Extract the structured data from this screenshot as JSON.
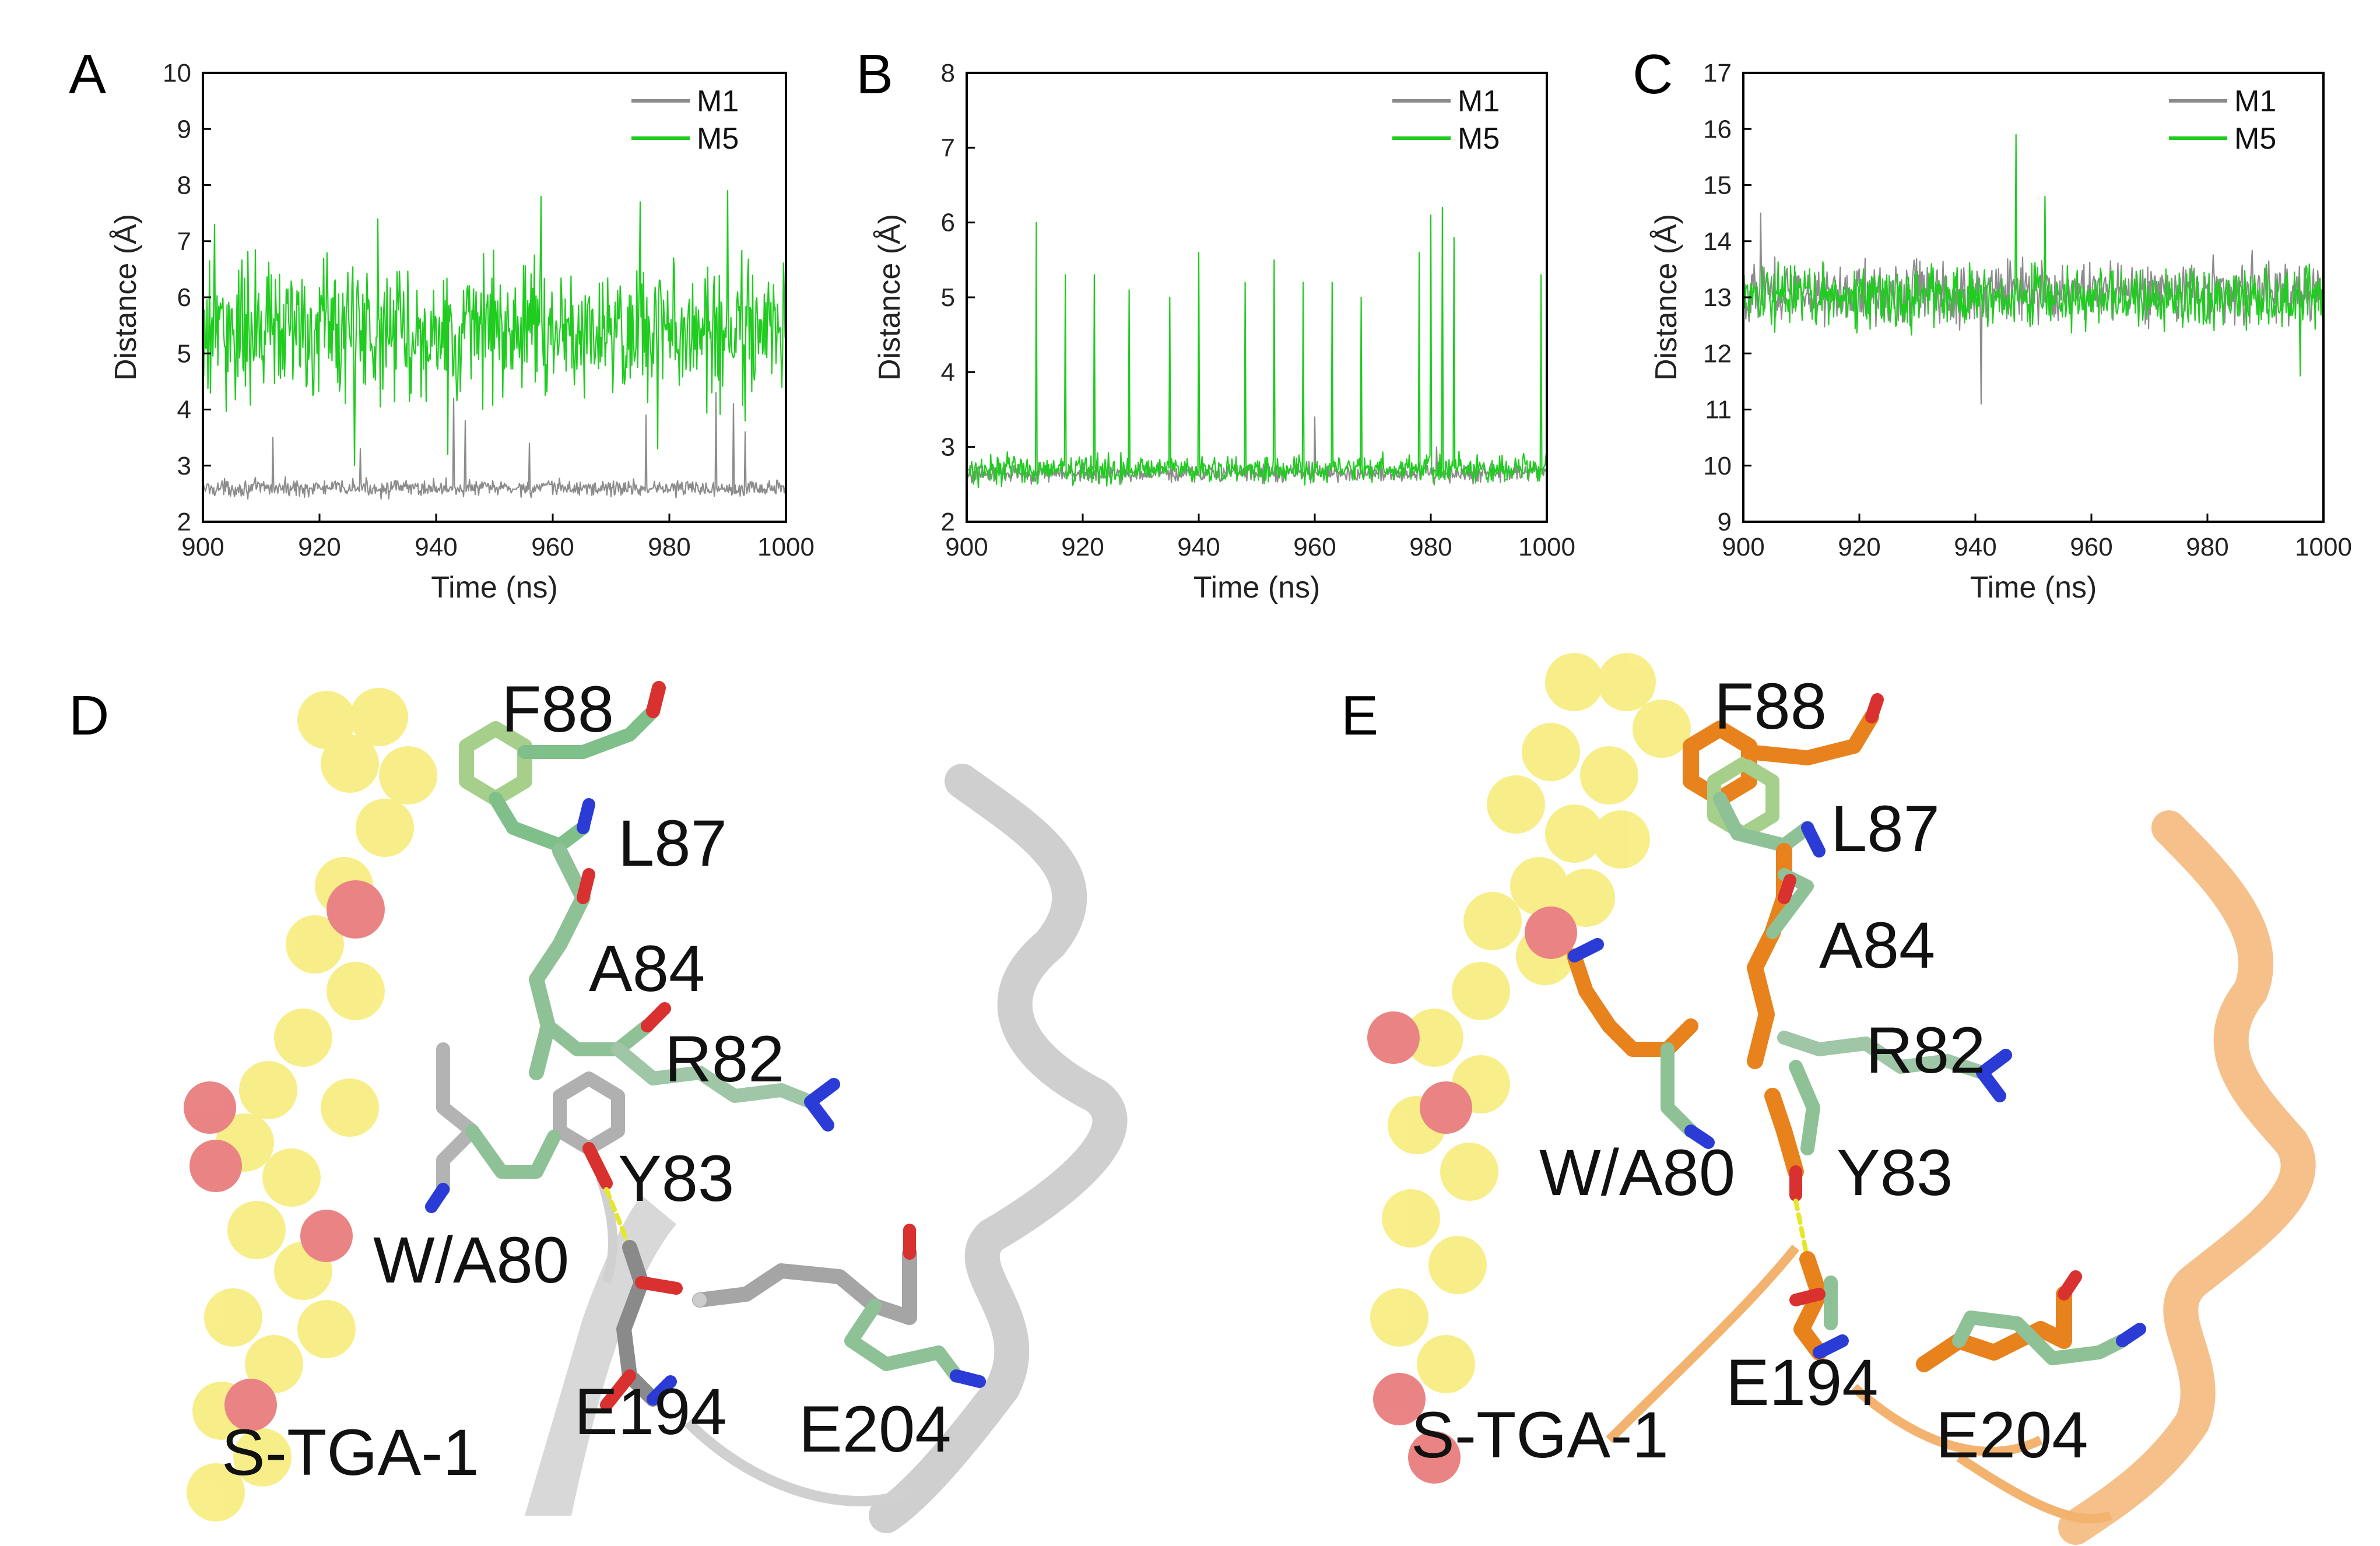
{
  "figure": {
    "panel_letters": [
      "A",
      "B",
      "C",
      "D",
      "E"
    ],
    "colors": {
      "M1": "#8c8c8c",
      "M5": "#1fcc1f",
      "frame": "#000000"
    }
  },
  "chart_data": [
    {
      "type": "line",
      "panel": "A",
      "title": "",
      "xlabel": "Time (ns)",
      "ylabel": "Distance (Å)",
      "xlim": [
        900,
        1000
      ],
      "ylim": [
        2,
        10
      ],
      "xticks": [
        900,
        920,
        940,
        960,
        980,
        1000
      ],
      "yticks": [
        2,
        3,
        4,
        5,
        6,
        7,
        8,
        9,
        10
      ],
      "legend": "top-right",
      "series": [
        {
          "name": "M1",
          "color": "#8c8c8c",
          "mean": 2.6,
          "noise": 0.12,
          "spikes": [
            [
              912,
              3.5
            ],
            [
              927,
              3.3
            ],
            [
              943,
              4.2
            ],
            [
              945,
              3.8
            ],
            [
              956,
              3.4
            ],
            [
              976,
              3.9
            ],
            [
              988,
              4.3
            ],
            [
              991,
              4.1
            ],
            [
              993,
              3.6
            ]
          ]
        },
        {
          "name": "M5",
          "color": "#1fcc1f",
          "mean": 5.4,
          "noise": 1.0,
          "spikes": [
            [
              902,
              7.3
            ],
            [
              930,
              7.4
            ],
            [
              958,
              7.8
            ],
            [
              975,
              7.7
            ],
            [
              990,
              7.9
            ],
            [
              926,
              3.0
            ],
            [
              942,
              3.2
            ],
            [
              978,
              3.3
            ],
            [
              993,
              3.8
            ]
          ]
        }
      ]
    },
    {
      "type": "line",
      "panel": "B",
      "title": "",
      "xlabel": "Time (ns)",
      "ylabel": "Distance (Å)",
      "xlim": [
        900,
        1000
      ],
      "ylim": [
        2,
        8
      ],
      "xticks": [
        900,
        920,
        940,
        960,
        980,
        1000
      ],
      "yticks": [
        2,
        3,
        4,
        5,
        6,
        7,
        8
      ],
      "legend": "top-right",
      "series": [
        {
          "name": "M1",
          "color": "#8c8c8c",
          "mean": 2.65,
          "noise": 0.1,
          "spikes": [
            [
              960,
              3.4
            ],
            [
              981,
              3.0
            ]
          ]
        },
        {
          "name": "M5",
          "color": "#1fcc1f",
          "mean": 2.7,
          "noise": 0.15,
          "spikes": [
            [
              912,
              6.0
            ],
            [
              917,
              5.3
            ],
            [
              922,
              5.3
            ],
            [
              928,
              5.1
            ],
            [
              935,
              5.0
            ],
            [
              940,
              5.6
            ],
            [
              948,
              5.2
            ],
            [
              953,
              5.5
            ],
            [
              958,
              5.2
            ],
            [
              963,
              5.2
            ],
            [
              968,
              5.0
            ],
            [
              978,
              5.6
            ],
            [
              980,
              6.1
            ],
            [
              982,
              6.2
            ],
            [
              984,
              5.8
            ],
            [
              999,
              5.3
            ]
          ]
        }
      ]
    },
    {
      "type": "line",
      "panel": "C",
      "title": "",
      "xlabel": "Time (ns)",
      "ylabel": "Distance (Å)",
      "xlim": [
        900,
        1000
      ],
      "ylim": [
        9,
        17
      ],
      "xticks": [
        900,
        920,
        940,
        960,
        980,
        1000
      ],
      "yticks": [
        9,
        10,
        11,
        12,
        13,
        14,
        15,
        16,
        17
      ],
      "legend": "top-right",
      "series": [
        {
          "name": "M1",
          "color": "#8c8c8c",
          "mean": 13.1,
          "noise": 0.45,
          "spikes": [
            [
              941,
              11.1
            ],
            [
              903,
              14.5
            ]
          ]
        },
        {
          "name": "M5",
          "color": "#1fcc1f",
          "mean": 13.0,
          "noise": 0.45,
          "spikes": [
            [
              947,
              15.9
            ],
            [
              952,
              14.8
            ],
            [
              996,
              11.6
            ]
          ]
        }
      ]
    }
  ],
  "structures": {
    "D": {
      "residues": [
        "F88",
        "L87",
        "A84",
        "R82",
        "Y83",
        "W/A80",
        "E194",
        "E204"
      ],
      "chain": "S-TGA-1",
      "ribbon_color": "#c8c8c8",
      "stick_color": "#9a9a9a"
    },
    "E": {
      "residues": [
        "F88",
        "L87",
        "A84",
        "R82",
        "W/A80",
        "Y83",
        "E194",
        "E204"
      ],
      "chain": "S-TGA-1",
      "ribbon_color": "#f3b36f",
      "stick_color": "#e8821c"
    }
  }
}
